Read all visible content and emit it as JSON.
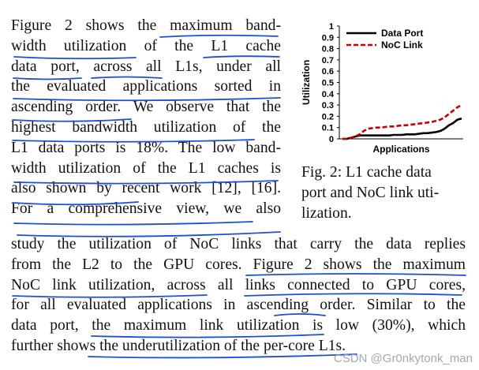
{
  "column_text": [
    "Figure 2 shows the maximum band-",
    "width utilization of the L1 cache",
    "data port, across all L1s, under all",
    "the evaluated applications sorted in",
    "ascending order. We observe that the",
    "highest bandwidth utilization of the",
    "L1 data ports is 18%. The low band-",
    "width utilization of the L1 caches is",
    "also shown by recent work [12], [16].",
    "For a comprehensive view, we also"
  ],
  "full_text": [
    "study the utilization of NoC links that carry the data replies",
    "from the L2 to the GPU cores. Figure 2 shows the maximum",
    "NoC link utilization, across all links connected to GPU cores,",
    "for all evaluated applications in ascending order. Similar to the",
    "data port, the maximum link utilization is low (30%), which",
    "further shows the underutilization of the per-core L1s."
  ],
  "caption": [
    "Fig. 2: L1 cache data",
    "port and NoC link uti-",
    "lization."
  ],
  "watermark": "CSDN @Gr0nkytonk_man",
  "chart_data": {
    "type": "line",
    "xlabel": "Applications",
    "ylabel": "Utilization",
    "ylim": [
      0,
      1
    ],
    "yticks": [
      "0",
      "0.1",
      "0.2",
      "0.3",
      "0.4",
      "0.5",
      "0.6",
      "0.7",
      "0.8",
      "0.9",
      "1"
    ],
    "legend_position": "top-left",
    "series": [
      {
        "name": "Data Port",
        "style": "solid",
        "color": "#000000",
        "values": [
          0.0,
          0.0,
          0.01,
          0.02,
          0.03,
          0.03,
          0.03,
          0.03,
          0.03,
          0.03,
          0.03,
          0.03,
          0.035,
          0.035,
          0.035,
          0.04,
          0.04,
          0.04,
          0.045,
          0.05,
          0.05,
          0.055,
          0.06,
          0.07,
          0.09,
          0.12,
          0.14,
          0.17,
          0.18
        ]
      },
      {
        "name": "NoC Link",
        "style": "dashed",
        "color": "#cc0000",
        "values": [
          0.0,
          0.0,
          0.01,
          0.02,
          0.04,
          0.07,
          0.09,
          0.095,
          0.1,
          0.1,
          0.105,
          0.11,
          0.11,
          0.115,
          0.12,
          0.12,
          0.125,
          0.13,
          0.135,
          0.14,
          0.145,
          0.15,
          0.16,
          0.17,
          0.19,
          0.22,
          0.25,
          0.28,
          0.3
        ]
      }
    ]
  }
}
